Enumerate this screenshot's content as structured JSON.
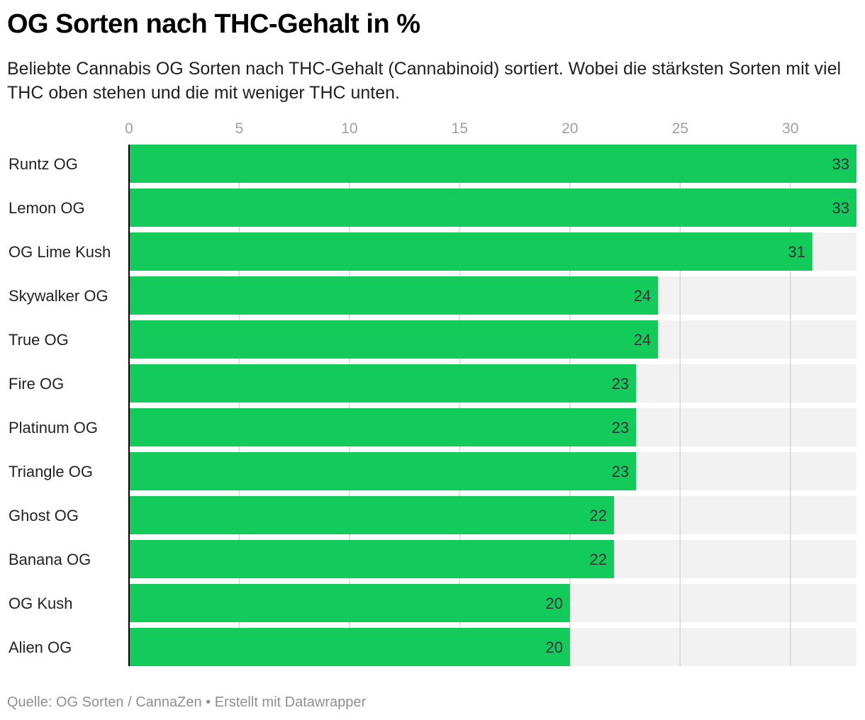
{
  "header": {
    "title": "OG Sorten nach THC-Gehalt in %",
    "subtitle": "Beliebte Cannabis OG Sorten nach THC-Gehalt (Cannabinoid) sortiert. Wobei die stärksten Sorten mit viel THC oben stehen und die mit weniger THC unten."
  },
  "footer": {
    "source_label": "Quelle:",
    "source_text": "OG Sorten / CannaZen",
    "separator": "•",
    "credit": "Erstellt mit Datawrapper"
  },
  "colors": {
    "bar": "#13cb5a",
    "track": "#f2f2f2",
    "grid": "#d6d6d6",
    "tick_label": "#9e9e9e",
    "value_label": "#333333",
    "category_label": "#222222",
    "axis_line": "#000000"
  },
  "chart_data": {
    "type": "bar",
    "orientation": "horizontal",
    "title": "OG Sorten nach THC-Gehalt in %",
    "categories": [
      "Runtz OG",
      "Lemon OG",
      "OG Lime Kush",
      "Skywalker OG",
      "True OG",
      "Fire OG",
      "Platinum OG",
      "Triangle OG",
      "Ghost OG",
      "Banana OG",
      "OG Kush",
      "Alien OG"
    ],
    "values": [
      33,
      33,
      31,
      24,
      24,
      23,
      23,
      23,
      22,
      22,
      20,
      20
    ],
    "xlim": [
      0,
      33
    ],
    "xticks": [
      0,
      5,
      10,
      15,
      20,
      25,
      30
    ],
    "grid": true,
    "value_labels": true,
    "axis_position": "top"
  }
}
